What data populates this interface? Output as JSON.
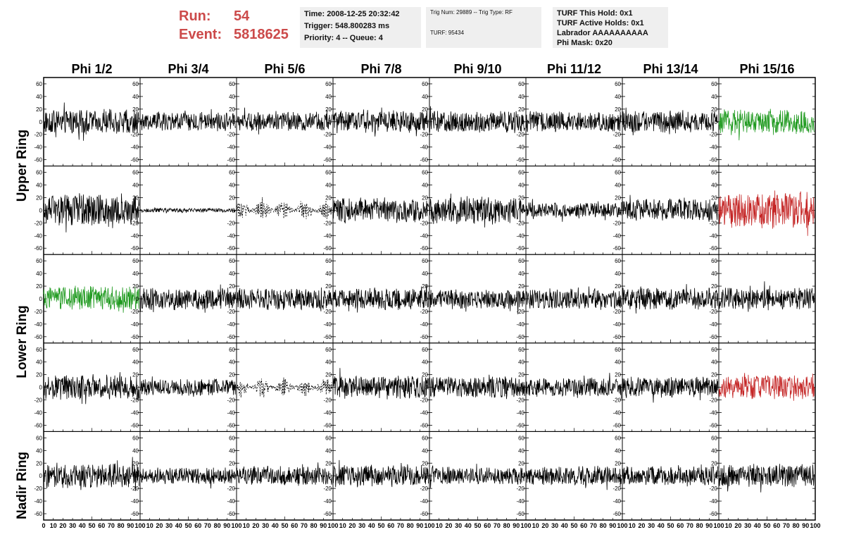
{
  "header": {
    "run_label": "Run:",
    "run_value": "54",
    "event_label": "Event:",
    "event_value": "5818625",
    "time": "Time: 2008-12-25 20:32:42",
    "trigger": "Trigger: 548.800283 ms",
    "priority": "Priority: 4 -- Queue: 4",
    "trig_num": "Trig Num: 29889 -- Trig Type: RF",
    "turf": "TURF: 95434",
    "turf_hold": "TURF This Hold: 0x1",
    "turf_active": "TURF Active Holds: 0x1",
    "labrador": "Labrador AAAAAAAAAA",
    "phi_mask": "Phi Mask: 0x20"
  },
  "chart_data": {
    "type": "line",
    "columns": [
      "Phi 1/2",
      "Phi 3/4",
      "Phi 5/6",
      "Phi 7/8",
      "Phi 9/10",
      "Phi 11/12",
      "Phi 13/14",
      "Phi 15/16"
    ],
    "row_groups": [
      "Upper Ring",
      "Lower Ring",
      "Nadir Ring"
    ],
    "ylim": [
      -70,
      70
    ],
    "yticks": [
      "60",
      "40",
      "20",
      "0",
      "-20",
      "-40",
      "-60"
    ],
    "xlim": [
      0,
      100
    ],
    "xticks": [
      "0",
      "10",
      "20",
      "30",
      "40",
      "50",
      "60",
      "70",
      "80",
      "90",
      "100"
    ],
    "colors": {
      "normal": "#000000",
      "triggered_green": "#1f9a1f",
      "triggered_red": "#c42424"
    },
    "panels": [
      {
        "row": 0,
        "col": 0,
        "amp": 18,
        "color": "normal"
      },
      {
        "row": 0,
        "col": 1,
        "amp": 14,
        "color": "normal"
      },
      {
        "row": 0,
        "col": 2,
        "amp": 14,
        "color": "normal"
      },
      {
        "row": 0,
        "col": 3,
        "amp": 16,
        "color": "normal"
      },
      {
        "row": 0,
        "col": 4,
        "amp": 16,
        "color": "normal"
      },
      {
        "row": 0,
        "col": 5,
        "amp": 15,
        "color": "normal"
      },
      {
        "row": 0,
        "col": 6,
        "amp": 16,
        "color": "normal"
      },
      {
        "row": 0,
        "col": 7,
        "amp": 18,
        "color": "triggered_green"
      },
      {
        "row": 1,
        "col": 0,
        "amp": 24,
        "color": "normal"
      },
      {
        "row": 1,
        "col": 1,
        "amp": 3,
        "color": "normal"
      },
      {
        "row": 1,
        "col": 2,
        "amp": 14,
        "color": "normal",
        "style": "dashed"
      },
      {
        "row": 1,
        "col": 3,
        "amp": 18,
        "color": "normal"
      },
      {
        "row": 1,
        "col": 4,
        "amp": 20,
        "color": "normal"
      },
      {
        "row": 1,
        "col": 5,
        "amp": 12,
        "color": "normal"
      },
      {
        "row": 1,
        "col": 6,
        "amp": 16,
        "color": "normal"
      },
      {
        "row": 1,
        "col": 7,
        "amp": 26,
        "color": "triggered_red"
      },
      {
        "row": 2,
        "col": 0,
        "amp": 18,
        "color": "triggered_green"
      },
      {
        "row": 2,
        "col": 1,
        "amp": 16,
        "color": "normal"
      },
      {
        "row": 2,
        "col": 2,
        "amp": 16,
        "color": "normal"
      },
      {
        "row": 2,
        "col": 3,
        "amp": 16,
        "color": "normal"
      },
      {
        "row": 2,
        "col": 4,
        "amp": 14,
        "color": "normal"
      },
      {
        "row": 2,
        "col": 5,
        "amp": 15,
        "color": "normal"
      },
      {
        "row": 2,
        "col": 6,
        "amp": 16,
        "color": "normal"
      },
      {
        "row": 2,
        "col": 7,
        "amp": 16,
        "color": "normal"
      },
      {
        "row": 3,
        "col": 0,
        "amp": 18,
        "color": "normal"
      },
      {
        "row": 3,
        "col": 1,
        "amp": 12,
        "color": "normal"
      },
      {
        "row": 3,
        "col": 2,
        "amp": 14,
        "color": "normal",
        "style": "dashed"
      },
      {
        "row": 3,
        "col": 3,
        "amp": 17,
        "color": "normal"
      },
      {
        "row": 3,
        "col": 4,
        "amp": 16,
        "color": "normal"
      },
      {
        "row": 3,
        "col": 5,
        "amp": 14,
        "color": "normal"
      },
      {
        "row": 3,
        "col": 6,
        "amp": 15,
        "color": "normal"
      },
      {
        "row": 3,
        "col": 7,
        "amp": 18,
        "color": "triggered_red"
      },
      {
        "row": 4,
        "col": 0,
        "amp": 18,
        "color": "normal"
      },
      {
        "row": 4,
        "col": 1,
        "amp": 12,
        "color": "normal"
      },
      {
        "row": 4,
        "col": 2,
        "amp": 14,
        "color": "normal"
      },
      {
        "row": 4,
        "col": 3,
        "amp": 16,
        "color": "normal"
      },
      {
        "row": 4,
        "col": 4,
        "amp": 13,
        "color": "normal"
      },
      {
        "row": 4,
        "col": 5,
        "amp": 14,
        "color": "normal"
      },
      {
        "row": 4,
        "col": 6,
        "amp": 14,
        "color": "normal"
      },
      {
        "row": 4,
        "col": 7,
        "amp": 17,
        "color": "normal"
      }
    ]
  }
}
